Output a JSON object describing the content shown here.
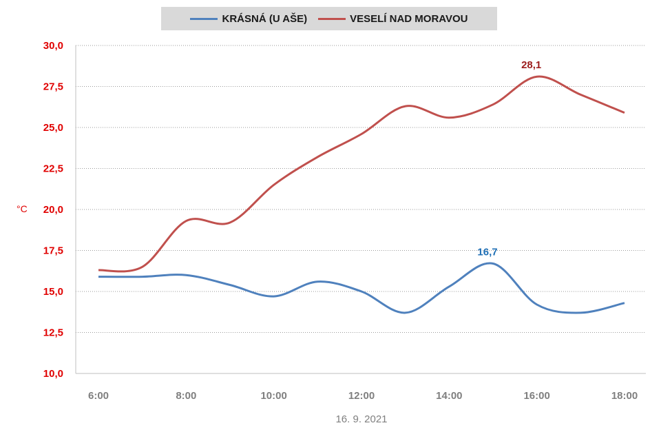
{
  "chart_data": {
    "type": "line",
    "title": "",
    "xlabel": "16. 9. 2021",
    "ylabel": "°C",
    "ylim": [
      10.0,
      30.0
    ],
    "yticks": [
      "10,0",
      "12,5",
      "15,0",
      "17,5",
      "20,0",
      "22,5",
      "25,0",
      "27,5",
      "30,0"
    ],
    "x": [
      "6:00",
      "7:00",
      "8:00",
      "9:00",
      "10:00",
      "11:00",
      "12:00",
      "13:00",
      "14:00",
      "15:00",
      "16:00",
      "17:00",
      "18:00"
    ],
    "xtick_labels": [
      "6:00",
      "8:00",
      "10:00",
      "12:00",
      "14:00",
      "16:00",
      "18:00"
    ],
    "grid": "horizontal-dotted",
    "legend_position": "top",
    "series": [
      {
        "name": "KRÁSNÁ (U AŠE)",
        "color": "#4f81bd",
        "values": [
          15.9,
          15.9,
          16.0,
          15.4,
          14.7,
          15.6,
          15.0,
          13.7,
          15.3,
          16.7,
          14.2,
          13.7,
          14.3
        ],
        "annotation": {
          "index": 9,
          "text": "16,7",
          "color": "#1f6fb5"
        }
      },
      {
        "name": "VESELÍ NAD MORAVOU",
        "color": "#c0504d",
        "values": [
          16.3,
          16.5,
          19.3,
          19.2,
          21.5,
          23.2,
          24.6,
          26.3,
          25.6,
          26.4,
          28.1,
          27.0,
          25.9
        ],
        "annotation": {
          "index": 10,
          "text": "28,1",
          "color": "#9c1c1c"
        }
      }
    ],
    "colors": {
      "y_tick_color": "#e00000",
      "x_tick_color": "#7f7f7f",
      "unit_color": "#e00000",
      "caption_color": "#7f7f7f",
      "legend_bg": "#d9d9d9"
    }
  }
}
